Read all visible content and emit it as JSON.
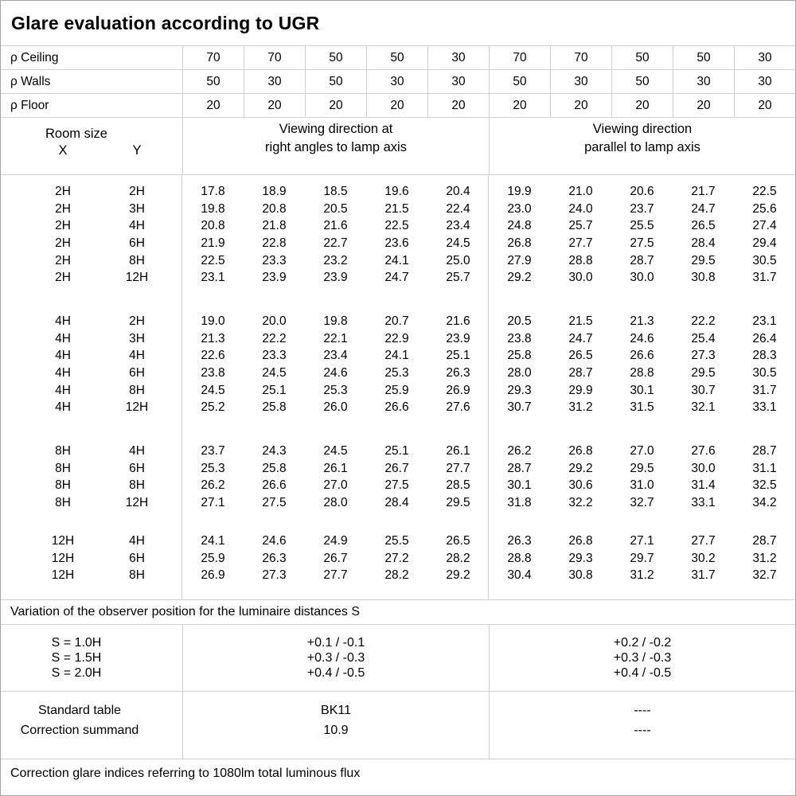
{
  "title": "Glare evaluation according to UGR",
  "reflectance_rows": [
    {
      "label": "ρ Ceiling",
      "values": [
        "70",
        "70",
        "50",
        "50",
        "30",
        "70",
        "70",
        "50",
        "50",
        "30"
      ]
    },
    {
      "label": "ρ Walls",
      "values": [
        "50",
        "30",
        "50",
        "30",
        "30",
        "50",
        "30",
        "50",
        "30",
        "30"
      ]
    },
    {
      "label": "ρ Floor",
      "values": [
        "20",
        "20",
        "20",
        "20",
        "20",
        "20",
        "20",
        "20",
        "20",
        "20"
      ]
    }
  ],
  "header": {
    "room_size": "Room size",
    "x": "X",
    "y": "Y",
    "right_angles_line1": "Viewing direction at",
    "right_angles_line2": "right angles to lamp axis",
    "parallel_line1": "Viewing direction",
    "parallel_line2": "parallel to lamp axis"
  },
  "blocks": [
    {
      "rows": [
        {
          "x": "2H",
          "y": "2H",
          "values": [
            "17.8",
            "18.9",
            "18.5",
            "19.6",
            "20.4",
            "19.9",
            "21.0",
            "20.6",
            "21.7",
            "22.5"
          ]
        },
        {
          "x": "2H",
          "y": "3H",
          "values": [
            "19.8",
            "20.8",
            "20.5",
            "21.5",
            "22.4",
            "23.0",
            "24.0",
            "23.7",
            "24.7",
            "25.6"
          ]
        },
        {
          "x": "2H",
          "y": "4H",
          "values": [
            "20.8",
            "21.8",
            "21.6",
            "22.5",
            "23.4",
            "24.8",
            "25.7",
            "25.5",
            "26.5",
            "27.4"
          ]
        },
        {
          "x": "2H",
          "y": "6H",
          "values": [
            "21.9",
            "22.8",
            "22.7",
            "23.6",
            "24.5",
            "26.8",
            "27.7",
            "27.5",
            "28.4",
            "29.4"
          ]
        },
        {
          "x": "2H",
          "y": "8H",
          "values": [
            "22.5",
            "23.3",
            "23.2",
            "24.1",
            "25.0",
            "27.9",
            "28.8",
            "28.7",
            "29.5",
            "30.5"
          ]
        },
        {
          "x": "2H",
          "y": "12H",
          "values": [
            "23.1",
            "23.9",
            "23.9",
            "24.7",
            "25.7",
            "29.2",
            "30.0",
            "30.0",
            "30.8",
            "31.7"
          ]
        }
      ]
    },
    {
      "rows": [
        {
          "x": "4H",
          "y": "2H",
          "values": [
            "19.0",
            "20.0",
            "19.8",
            "20.7",
            "21.6",
            "20.5",
            "21.5",
            "21.3",
            "22.2",
            "23.1"
          ]
        },
        {
          "x": "4H",
          "y": "3H",
          "values": [
            "21.3",
            "22.2",
            "22.1",
            "22.9",
            "23.9",
            "23.8",
            "24.7",
            "24.6",
            "25.4",
            "26.4"
          ]
        },
        {
          "x": "4H",
          "y": "4H",
          "values": [
            "22.6",
            "23.3",
            "23.4",
            "24.1",
            "25.1",
            "25.8",
            "26.5",
            "26.6",
            "27.3",
            "28.3"
          ]
        },
        {
          "x": "4H",
          "y": "6H",
          "values": [
            "23.8",
            "24.5",
            "24.6",
            "25.3",
            "26.3",
            "28.0",
            "28.7",
            "28.8",
            "29.5",
            "30.5"
          ]
        },
        {
          "x": "4H",
          "y": "8H",
          "values": [
            "24.5",
            "25.1",
            "25.3",
            "25.9",
            "26.9",
            "29.3",
            "29.9",
            "30.1",
            "30.7",
            "31.7"
          ]
        },
        {
          "x": "4H",
          "y": "12H",
          "values": [
            "25.2",
            "25.8",
            "26.0",
            "26.6",
            "27.6",
            "30.7",
            "31.2",
            "31.5",
            "32.1",
            "33.1"
          ]
        }
      ]
    },
    {
      "rows": [
        {
          "x": "8H",
          "y": "4H",
          "values": [
            "23.7",
            "24.3",
            "24.5",
            "25.1",
            "26.1",
            "26.2",
            "26.8",
            "27.0",
            "27.6",
            "28.7"
          ]
        },
        {
          "x": "8H",
          "y": "6H",
          "values": [
            "25.3",
            "25.8",
            "26.1",
            "26.7",
            "27.7",
            "28.7",
            "29.2",
            "29.5",
            "30.0",
            "31.1"
          ]
        },
        {
          "x": "8H",
          "y": "8H",
          "values": [
            "26.2",
            "26.6",
            "27.0",
            "27.5",
            "28.5",
            "30.1",
            "30.6",
            "31.0",
            "31.4",
            "32.5"
          ]
        },
        {
          "x": "8H",
          "y": "12H",
          "values": [
            "27.1",
            "27.5",
            "28.0",
            "28.4",
            "29.5",
            "31.8",
            "32.2",
            "32.7",
            "33.1",
            "34.2"
          ]
        }
      ]
    },
    {
      "rows": [
        {
          "x": "12H",
          "y": "4H",
          "values": [
            "24.1",
            "24.6",
            "24.9",
            "25.5",
            "26.5",
            "26.3",
            "26.8",
            "27.1",
            "27.7",
            "28.7"
          ]
        },
        {
          "x": "12H",
          "y": "6H",
          "values": [
            "25.9",
            "26.3",
            "26.7",
            "27.2",
            "28.2",
            "28.8",
            "29.3",
            "29.7",
            "30.2",
            "31.2"
          ]
        },
        {
          "x": "12H",
          "y": "8H",
          "values": [
            "26.9",
            "27.3",
            "27.7",
            "28.2",
            "29.2",
            "30.4",
            "30.8",
            "31.2",
            "31.7",
            "32.7"
          ]
        }
      ]
    }
  ],
  "variation_note": "Variation of the observer position for the luminaire distances S",
  "variation": {
    "labels": [
      "S = 1.0H",
      "S = 1.5H",
      "S = 2.0H"
    ],
    "right_angles": [
      "+0.1 / -0.1",
      "+0.3 / -0.3",
      "+0.4 / -0.5"
    ],
    "parallel": [
      "+0.2 / -0.2",
      "+0.3 / -0.3",
      "+0.4 / -0.5"
    ]
  },
  "summary": {
    "labels": [
      "Standard table",
      "Correction summand"
    ],
    "right_angles": [
      "BK11",
      "10.9"
    ],
    "parallel": [
      "----",
      "----"
    ]
  },
  "footer_note": "Correction glare indices referring to 1080lm total luminous flux"
}
